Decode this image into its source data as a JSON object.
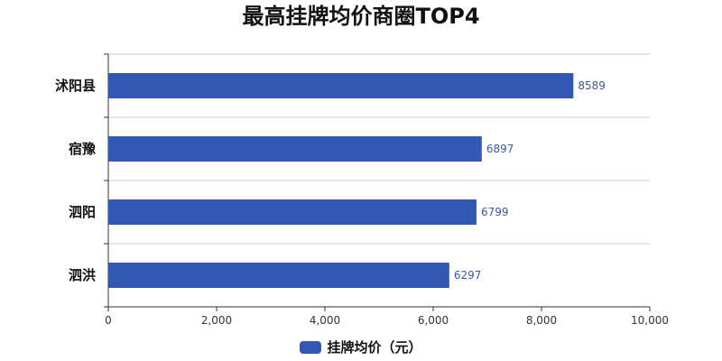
{
  "chart_data": {
    "type": "bar",
    "orientation": "horizontal",
    "title": "最高挂牌均价商圈TOP4",
    "categories": [
      "沭阳县",
      "宿豫",
      "泗阳",
      "泗洪"
    ],
    "series": [
      {
        "name": "挂牌均价（元）",
        "values": [
          8589,
          6897,
          6799,
          6297
        ],
        "color": "#3358b4"
      }
    ],
    "xlim": [
      0,
      10000
    ],
    "xticks": [
      "0",
      "2,000",
      "4,000",
      "6,000",
      "8,000",
      "10,000"
    ],
    "xtick_values": [
      0,
      2000,
      4000,
      6000,
      8000,
      10000
    ],
    "grid": true,
    "legend_position": "bottom-center",
    "data_labels": [
      "8589",
      "6897",
      "6799",
      "6297"
    ]
  }
}
